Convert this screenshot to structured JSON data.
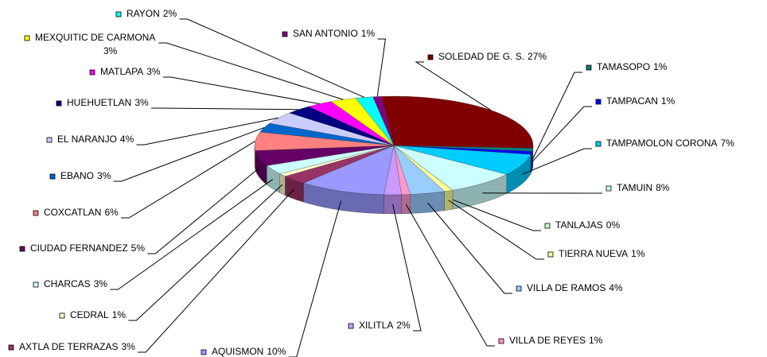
{
  "chart_data": {
    "type": "pie3d",
    "categories": [
      "SOLEDAD DE G. S.",
      "TAMASOPO",
      "TAMPACAN",
      "TAMPAMOLON CORONA",
      "TAMUIN",
      "TANLAJAS",
      "TIERRA NUEVA",
      "VILLA DE RAMOS",
      "VILLA DE REYES",
      "XILITLA",
      "AQUISMON",
      "AXTLA DE TERRAZAS",
      "CEDRAL",
      "CHARCAS",
      "CIUDAD FERNANDEZ",
      "COXCATLAN",
      "EBANO",
      "EL NARANJO",
      "HUEHUETLAN",
      "MATLAPA",
      "MEXQUITIC DE CARMONA",
      "RAYON",
      "SAN ANTONIO"
    ],
    "values": [
      27,
      1,
      1,
      7,
      8,
      0,
      1,
      4,
      1,
      2,
      10,
      3,
      1,
      3,
      5,
      6,
      3,
      4,
      3,
      3,
      3,
      2,
      1
    ],
    "value_labels": [
      "27%",
      "1%",
      "1%",
      "7%",
      "8%",
      "0%",
      "1%",
      "4%",
      "1%",
      "2%",
      "10%",
      "3%",
      "1%",
      "3%",
      "5%",
      "6%",
      "3%",
      "4%",
      "3%",
      "3%",
      "3%",
      "2%",
      "1%"
    ],
    "colors": [
      "#800000",
      "#008080",
      "#0000ff",
      "#00ccff",
      "#ccffff",
      "#ccffcc",
      "#ffff99",
      "#99ccff",
      "#ff99cc",
      "#cc99ff",
      "#9999ff",
      "#993366",
      "#ffffcc",
      "#ccffff",
      "#660066",
      "#ff8080",
      "#0066cc",
      "#ccccff",
      "#000080",
      "#ff00ff",
      "#ffff00",
      "#00ffff",
      "#800080"
    ]
  }
}
